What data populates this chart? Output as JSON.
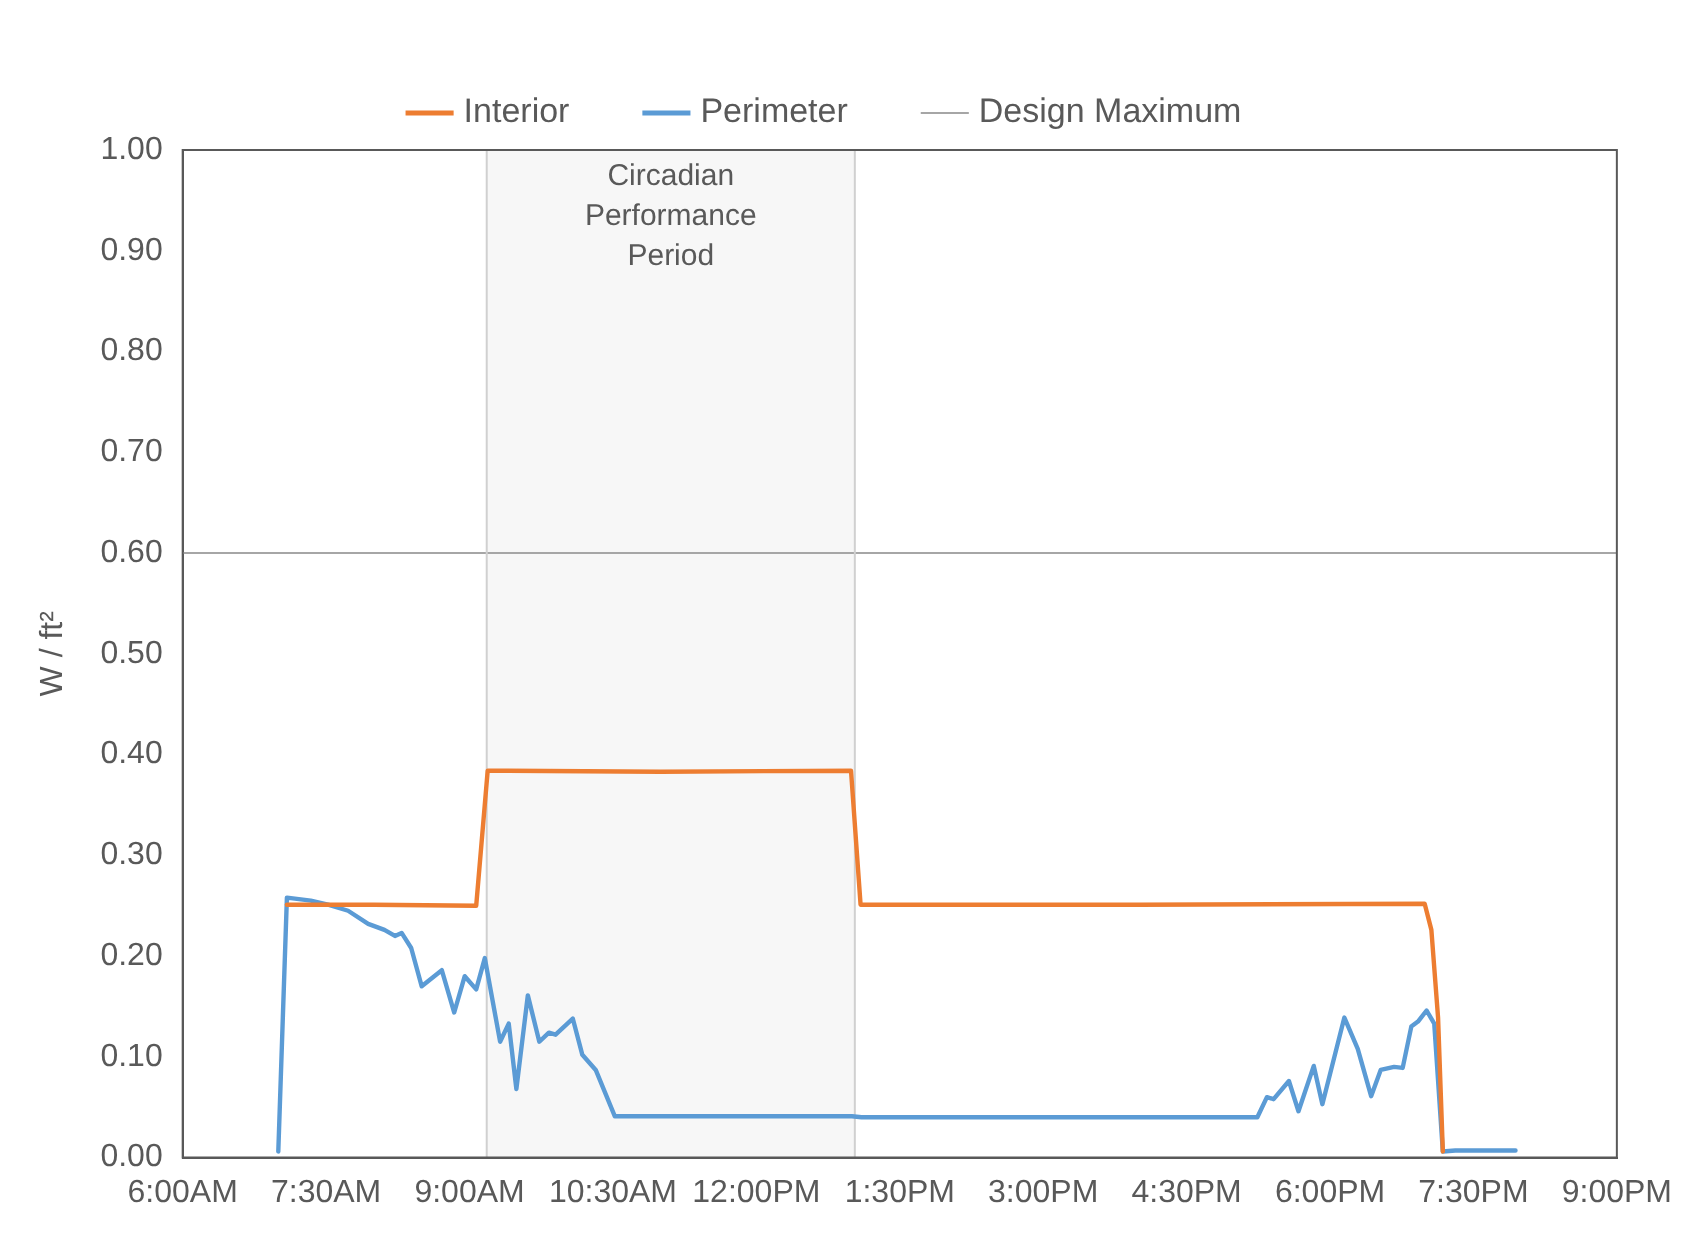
{
  "chart_data": {
    "type": "line",
    "ylabel": "W / ft²",
    "xlim": [
      6,
      21
    ],
    "xticks": [
      {
        "value": 6,
        "label": "6:00AM"
      },
      {
        "value": 7.5,
        "label": "7:30AM"
      },
      {
        "value": 9,
        "label": "9:00AM"
      },
      {
        "value": 10.5,
        "label": "10:30AM"
      },
      {
        "value": 12,
        "label": "12:00PM"
      },
      {
        "value": 13.5,
        "label": "1:30PM"
      },
      {
        "value": 15,
        "label": "3:00PM"
      },
      {
        "value": 16.5,
        "label": "4:30PM"
      },
      {
        "value": 18,
        "label": "6:00PM"
      },
      {
        "value": 19.5,
        "label": "7:30PM"
      },
      {
        "value": 21,
        "label": "9:00PM"
      }
    ],
    "ylim": [
      0,
      1
    ],
    "yticks": [
      {
        "value": 0,
        "label": "0.00"
      },
      {
        "value": 0.1,
        "label": "0.10"
      },
      {
        "value": 0.2,
        "label": "0.20"
      },
      {
        "value": 0.3,
        "label": "0.30"
      },
      {
        "value": 0.4,
        "label": "0.40"
      },
      {
        "value": 0.5,
        "label": "0.50"
      },
      {
        "value": 0.6,
        "label": "0.60"
      },
      {
        "value": 0.7,
        "label": "0.70"
      },
      {
        "value": 0.8,
        "label": "0.80"
      },
      {
        "value": 0.9,
        "label": "0.90"
      },
      {
        "value": 1,
        "label": "1.00"
      }
    ],
    "grid": false,
    "legend": "top",
    "marker": "none",
    "line_style": "solid",
    "series": [
      {
        "name": "Interior",
        "color": "#ed7d31",
        "x": [
          7.09,
          8.0,
          9.07,
          9.19,
          11.0,
          12.99,
          13.09,
          16.0,
          18.99,
          19.06,
          19.13,
          19.18
        ],
        "values": [
          0.251,
          0.251,
          0.25,
          0.384,
          0.383,
          0.384,
          0.251,
          0.251,
          0.252,
          0.226,
          0.139,
          0.006
        ]
      },
      {
        "name": "Perimeter",
        "color": "#5b9bd5",
        "x": [
          7.0,
          7.09,
          7.34,
          7.52,
          7.73,
          7.94,
          8.11,
          8.22,
          8.29,
          8.39,
          8.5,
          8.71,
          8.84,
          8.95,
          9.07,
          9.16,
          9.32,
          9.41,
          9.49,
          9.61,
          9.73,
          9.83,
          9.9,
          10.08,
          10.18,
          10.32,
          10.52,
          13.0,
          13.1,
          17.24,
          17.34,
          17.41,
          17.57,
          17.67,
          17.83,
          17.92,
          18.15,
          18.29,
          18.43,
          18.53,
          18.67,
          18.76,
          18.85,
          18.92,
          19.01,
          19.09,
          19.18,
          19.31,
          19.94
        ],
        "values": [
          0.006,
          0.258,
          0.255,
          0.251,
          0.245,
          0.232,
          0.226,
          0.22,
          0.223,
          0.208,
          0.17,
          0.186,
          0.144,
          0.18,
          0.167,
          0.198,
          0.115,
          0.133,
          0.068,
          0.161,
          0.115,
          0.124,
          0.122,
          0.138,
          0.102,
          0.087,
          0.041,
          0.041,
          0.04,
          0.04,
          0.06,
          0.058,
          0.076,
          0.046,
          0.091,
          0.053,
          0.139,
          0.108,
          0.061,
          0.087,
          0.09,
          0.089,
          0.13,
          0.135,
          0.146,
          0.133,
          0.006,
          0.007,
          0.007
        ]
      }
    ],
    "ref_lines": [
      {
        "axis": "y",
        "value": 0.6,
        "label": "Design Maximum",
        "color": "#a6a6a6"
      },
      {
        "axis": "x",
        "value": 9.18,
        "color": "#d0d0d0"
      },
      {
        "axis": "x",
        "value": 13.03,
        "color": "#d0d0d0"
      }
    ],
    "bands": [
      {
        "axis": "x",
        "from": 9.18,
        "to": 13.03,
        "label": "Circadian Performance Period",
        "color": "#f7f7f7"
      }
    ]
  }
}
